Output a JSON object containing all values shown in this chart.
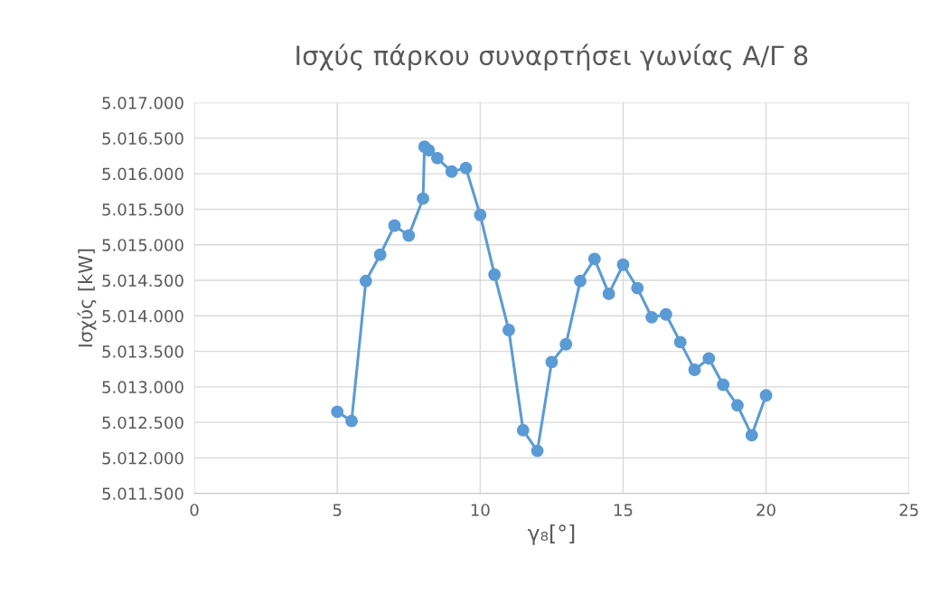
{
  "chart_data": {
    "type": "line",
    "title": "Ισχύς πάρκου συναρτήσει γωνίας Α/Γ 8",
    "xlabel": "γ₈[°]",
    "ylabel": "Ισχύς [kW]",
    "x": [
      5,
      5.5,
      6,
      6.5,
      7,
      7.5,
      8,
      8.05,
      8.2,
      8.5,
      9,
      9.5,
      10,
      10.5,
      11,
      11.5,
      12,
      12.5,
      13,
      13.5,
      14,
      14.5,
      15,
      15.5,
      16,
      16.5,
      17,
      17.5,
      18,
      18.5,
      19,
      19.5,
      20
    ],
    "series": [
      {
        "color": "#5b9bd5",
        "values": [
          5012650,
          5012520,
          5014490,
          5014860,
          5015270,
          5015130,
          5015650,
          5016380,
          5016330,
          5016220,
          5016030,
          5016080,
          5015420,
          5014580,
          5013800,
          5012390,
          5012100,
          5013350,
          5013600,
          5014490,
          5014800,
          5014310,
          5014720,
          5014390,
          5013980,
          5014020,
          5013630,
          5013240,
          5013400,
          5013030,
          5012740,
          5012320,
          5012880
        ]
      }
    ],
    "xlim": [
      0,
      25
    ],
    "xticks": [
      0,
      5,
      10,
      15,
      20,
      25
    ],
    "ylim": [
      5011500,
      5017000
    ],
    "yticks": [
      {
        "value": 5011500,
        "label": "5.011.500"
      },
      {
        "value": 5012000,
        "label": "5.012.000"
      },
      {
        "value": 5012500,
        "label": "5.012.500"
      },
      {
        "value": 5013000,
        "label": "5.013.000"
      },
      {
        "value": 5013500,
        "label": "5.013.500"
      },
      {
        "value": 5014000,
        "label": "5.014.000"
      },
      {
        "value": 5014500,
        "label": "5.014.500"
      },
      {
        "value": 5015000,
        "label": "5.015.000"
      },
      {
        "value": 5015500,
        "label": "5.015.500"
      },
      {
        "value": 5016000,
        "label": "5.016.000"
      },
      {
        "value": 5016500,
        "label": "5.016.500"
      },
      {
        "value": 5017000,
        "label": "5.017.000"
      }
    ],
    "grid": true,
    "marker": "circle",
    "line_style": "solid"
  }
}
